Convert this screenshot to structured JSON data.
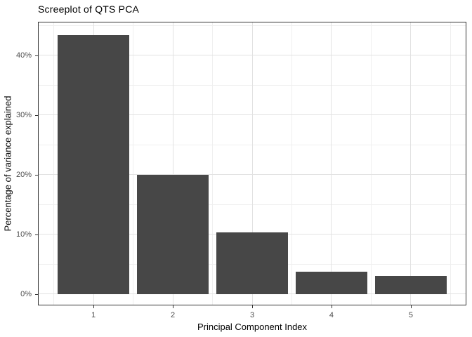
{
  "chart_data": {
    "type": "bar",
    "title": "Screeplot of QTS PCA",
    "xlabel": "Principal Component Index",
    "ylabel": "Percentage of variance explained",
    "categories": [
      1,
      2,
      3,
      4,
      5
    ],
    "values": [
      43.4,
      20.0,
      10.3,
      3.8,
      3.0
    ],
    "value_unit": "%",
    "bar_width": 0.9,
    "xlim": [
      0.3,
      5.7
    ],
    "ylim": [
      -1.9,
      45.6
    ],
    "x_ticks": [
      1,
      2,
      3,
      4,
      5
    ],
    "x_tick_labels": [
      "1",
      "2",
      "3",
      "4",
      "5"
    ],
    "y_ticks": [
      0,
      10,
      20,
      30,
      40
    ],
    "y_tick_labels": [
      "0%",
      "10%",
      "20%",
      "30%",
      "40%"
    ],
    "x_minor_gridlines": [
      0.5,
      1.5,
      2.5,
      3.5,
      4.5,
      5.5
    ],
    "y_minor_gridlines": [
      5,
      15,
      25,
      35,
      45
    ],
    "grid": "on",
    "legend": "none",
    "colors": {
      "bar_fill": "#474747",
      "panel_border": "#333333",
      "grid_major": "#e2e2e2",
      "grid_minor": "#efefef",
      "tick_mark": "#333333",
      "tick_label": "#4d4d4d",
      "text": "#000000",
      "background": "#ffffff"
    }
  }
}
